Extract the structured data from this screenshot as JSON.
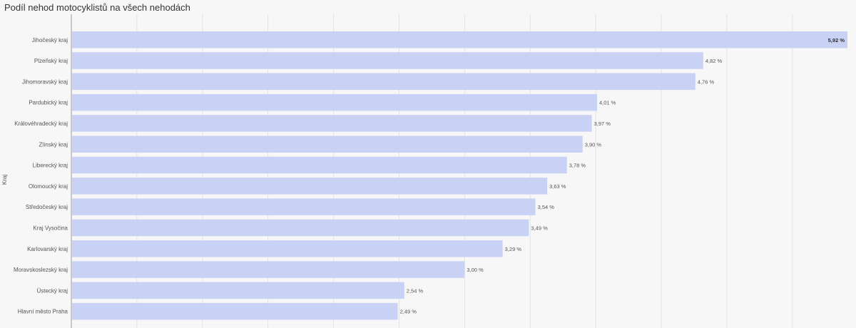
{
  "chart_data": {
    "type": "bar",
    "orientation": "horizontal",
    "title": "Podíl nehod motocyklistů na všech nehodách",
    "ylabel": "Kraj",
    "xlabel": "",
    "xlim": [
      0,
      6
    ],
    "grid": true,
    "legend": "none",
    "bar_color": "#c9d2f5",
    "categories": [
      "Jihočeský kraj",
      "Plzeňský kraj",
      "Jihomoravský kraj",
      "Pardubický kraj",
      "Královéhradecký kraj",
      "Zlínský kraj",
      "Liberecký kraj",
      "Olomoucký kraj",
      "Středočeský kraj",
      "Kraj Vysočina",
      "Karlovarský kraj",
      "Moravskoslezský kraj",
      "Ústecký kraj",
      "Hlavní město Praha"
    ],
    "values": [
      5.92,
      4.82,
      4.76,
      4.01,
      3.97,
      3.9,
      3.78,
      3.63,
      3.54,
      3.49,
      3.29,
      3.0,
      2.54,
      2.49
    ],
    "value_labels": [
      "5,92 %",
      "4,82 %",
      "4,76 %",
      "4,01 %",
      "3,97 %",
      "3,90 %",
      "3,78 %",
      "3,63 %",
      "3,54 %",
      "3,49 %",
      "3,29 %",
      "3,00 %",
      "2,54 %",
      "2,49 %"
    ]
  }
}
